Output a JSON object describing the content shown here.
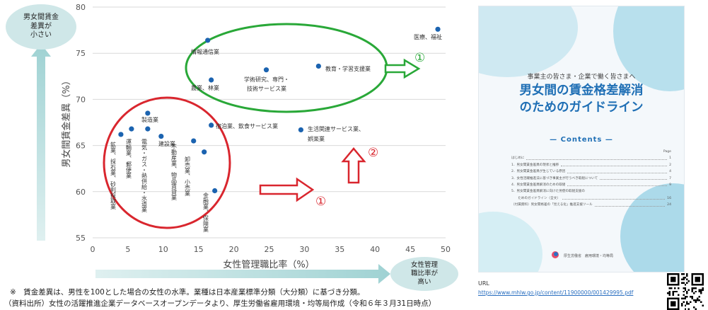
{
  "chart_data": {
    "type": "scatter",
    "xlabel": "女性管理職比率（%）",
    "ylabel": "男女間賃金差異（%）",
    "xlim": [
      0,
      50
    ],
    "ylim": [
      55,
      80
    ],
    "xticks": [
      "0",
      "5",
      "10",
      "15",
      "20",
      "25",
      "30",
      "35",
      "40",
      "45",
      "50"
    ],
    "yticks": [
      "55",
      "60",
      "65",
      "70",
      "75",
      "80"
    ],
    "marker_color": "#1b63b0",
    "points": [
      {
        "name": "鉱業、採石業、砂利採取業",
        "x": 4.0,
        "y": 66.2
      },
      {
        "name": "運輸業、郵便業",
        "x": 5.5,
        "y": 66.8
      },
      {
        "name": "製造業",
        "x": 7.8,
        "y": 68.5
      },
      {
        "name": "電気・ガス・熱供給・水道業",
        "x": 7.8,
        "y": 66.8
      },
      {
        "name": "建設業",
        "x": 9.7,
        "y": 66.0
      },
      {
        "name": "不動産業、物品賃貸業",
        "x": 14.3,
        "y": 65.5
      },
      {
        "name": "卸売業、小売業",
        "x": 15.8,
        "y": 64.3
      },
      {
        "name": "宿泊業、飲食サービス業",
        "x": 16.8,
        "y": 67.2
      },
      {
        "name": "金融業、保険業",
        "x": 17.3,
        "y": 60.1
      },
      {
        "name": "農業、林業",
        "x": 16.8,
        "y": 72.1
      },
      {
        "name": "情報通信業",
        "x": 16.3,
        "y": 76.4
      },
      {
        "name": "学術研究、専門・技術サービス業",
        "x": 24.6,
        "y": 73.2
      },
      {
        "name": "生活関連サービス業、娯楽業",
        "x": 29.5,
        "y": 66.7
      },
      {
        "name": "教育・学習支援業",
        "x": 32.0,
        "y": 73.6
      },
      {
        "name": "医療、福祉",
        "x": 48.9,
        "y": 77.6
      }
    ],
    "annotations": {
      "marker1": "①",
      "marker2": "②",
      "colors": {
        "red": "#d9262e",
        "green": "#29a838"
      }
    }
  },
  "bubbles": {
    "top_left": "男女間賃金\n差異が\n小さい",
    "bottom_right": "女性管理\n職比率が\n高い"
  },
  "notes": {
    "line1": "※　賃金差異は、男性を100とした場合の女性の水準。業種は日本産業標準分類（大分類）に基づき分類。",
    "line2": "（資料出所）女性の活躍推進企業データベースオープンデータより、厚生労働省雇用環境・均等局作成（令和６年３月31日時点）"
  },
  "brochure": {
    "subtitle": "事業主の皆さま・企業で働く皆さまへ",
    "title": "男女間の賃金格差解消\nのためのガイドライン",
    "contents_heading": "— Contents —",
    "page_label": "Page",
    "items": [
      {
        "text": "はじめに",
        "page": "1"
      },
      {
        "text": "1．男女間賃金差異の現状と推移",
        "page": "2"
      },
      {
        "text": "2．男女間賃金差異が生じている原因",
        "page": "4"
      },
      {
        "text": "3．女性活躍推進法に基づき事業主が行うべき取組について",
        "page": "7"
      },
      {
        "text": "4．男女間賃金差異解消のための取組",
        "page": "9"
      },
      {
        "text": "5．男女間賃金差異解消に向けた労使の取組支援の",
        "page": ""
      },
      {
        "text": "　　ためのガイドライン（全文）",
        "page": "16"
      },
      {
        "text": "（付属資料）男女間格差の「見える化」推進支援ツール",
        "page": "24"
      }
    ],
    "footer": "厚生労働省　雇用環境・均等局"
  },
  "url": {
    "label": "URL",
    "link": "https://www.mhlw.go.jp/content/11900000/001429995.pdf"
  }
}
